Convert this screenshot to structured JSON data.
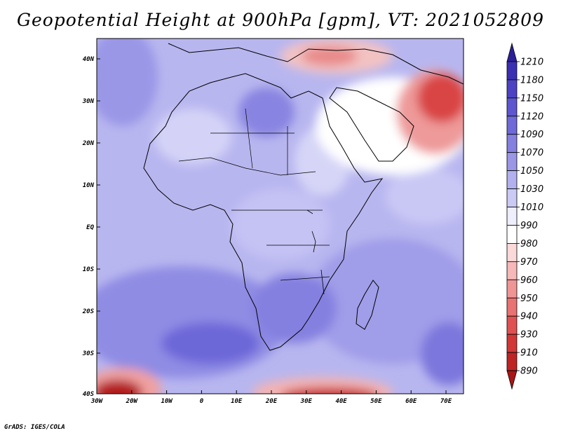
{
  "title": "Geopotential Height at 900hPa [gpm], VT: 2021052809",
  "credit": "GrADS: IGES/COLA",
  "map": {
    "region": "Africa",
    "lon_range": [
      -30,
      76
    ],
    "lat_range": [
      -40,
      45
    ],
    "y_ticks": [
      "40N",
      "30N",
      "20N",
      "10N",
      "EQ",
      "10S",
      "20S",
      "30S",
      "40S"
    ],
    "x_ticks": [
      "30W",
      "20W",
      "10W",
      "0",
      "10E",
      "20E",
      "30E",
      "40E",
      "50E",
      "60E",
      "70E"
    ]
  },
  "colorbar": {
    "labels": [
      "1210",
      "1180",
      "1150",
      "1120",
      "1090",
      "1070",
      "1050",
      "1030",
      "1010",
      "990",
      "980",
      "970",
      "960",
      "950",
      "940",
      "930",
      "910",
      "890"
    ],
    "colors": [
      "#2c1f9a",
      "#3a2fb2",
      "#4b43c4",
      "#5d56d0",
      "#6f6ad9",
      "#8480e0",
      "#9a97e7",
      "#b2b0ee",
      "#cbcaf5",
      "#eeeefc",
      "#ffffff",
      "#fbd9d9",
      "#f6b8b8",
      "#f09595",
      "#e97272",
      "#e05252",
      "#d23737",
      "#be2424",
      "#a81515"
    ]
  }
}
